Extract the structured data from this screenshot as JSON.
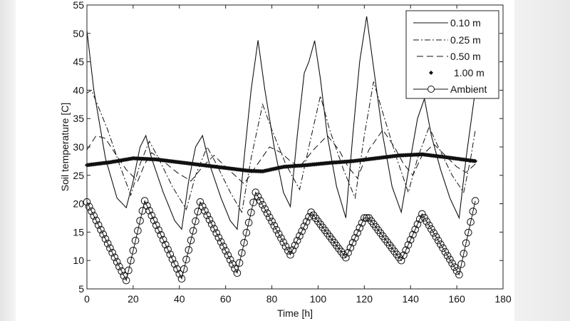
{
  "chart_data": {
    "type": "line",
    "title": "",
    "xlabel": "Time [h]",
    "ylabel": "Soil temperature [C]",
    "xlim": [
      0,
      180
    ],
    "ylim": [
      5,
      55
    ],
    "xticks": [
      0,
      20,
      40,
      60,
      80,
      100,
      120,
      140,
      160,
      180
    ],
    "yticks": [
      5,
      10,
      15,
      20,
      25,
      30,
      35,
      40,
      45,
      50,
      55
    ],
    "grid": false,
    "legend_position": "upper right",
    "series": [
      {
        "name": "0.10 m",
        "style": "solid",
        "points": [
          [
            0,
            50.5
          ],
          [
            3,
            40
          ],
          [
            8,
            28
          ],
          [
            13,
            21
          ],
          [
            17,
            19.3
          ],
          [
            20,
            24
          ],
          [
            23,
            30
          ],
          [
            25.5,
            32
          ],
          [
            28,
            28
          ],
          [
            33,
            22
          ],
          [
            38,
            17
          ],
          [
            41,
            15.5
          ],
          [
            44,
            24
          ],
          [
            47,
            30
          ],
          [
            50,
            32
          ],
          [
            53,
            27
          ],
          [
            58,
            21
          ],
          [
            62,
            17
          ],
          [
            65,
            15.5
          ],
          [
            68,
            28
          ],
          [
            71,
            40
          ],
          [
            74,
            48.8
          ],
          [
            77,
            40
          ],
          [
            81,
            30
          ],
          [
            85,
            22
          ],
          [
            88,
            19.5
          ],
          [
            91,
            32
          ],
          [
            94,
            43
          ],
          [
            96,
            45
          ],
          [
            98.5,
            48.7
          ],
          [
            101,
            42
          ],
          [
            104,
            32
          ],
          [
            108,
            23
          ],
          [
            112,
            17.5
          ],
          [
            115,
            32
          ],
          [
            118,
            45
          ],
          [
            121,
            53
          ],
          [
            124,
            44
          ],
          [
            128,
            32
          ],
          [
            132,
            23
          ],
          [
            136,
            18.5
          ],
          [
            140,
            28
          ],
          [
            143,
            35
          ],
          [
            146,
            38.5
          ],
          [
            149,
            32
          ],
          [
            153,
            26
          ],
          [
            157,
            21
          ],
          [
            161,
            17.5
          ],
          [
            164,
            28
          ],
          [
            168,
            40
          ]
        ]
      },
      {
        "name": "0.25 m",
        "style": "dash-dot",
        "points": [
          [
            0,
            39.5
          ],
          [
            2,
            40
          ],
          [
            5,
            37
          ],
          [
            9,
            33
          ],
          [
            14,
            27
          ],
          [
            19,
            21.5
          ],
          [
            23,
            27
          ],
          [
            27,
            31
          ],
          [
            31,
            28
          ],
          [
            37,
            23
          ],
          [
            43,
            19
          ],
          [
            47,
            25
          ],
          [
            52,
            30
          ],
          [
            56,
            27
          ],
          [
            62,
            22
          ],
          [
            67,
            18.5
          ],
          [
            71,
            28
          ],
          [
            76,
            37.5
          ],
          [
            80,
            33
          ],
          [
            86,
            27
          ],
          [
            92,
            22.5
          ],
          [
            96,
            30
          ],
          [
            101,
            39
          ],
          [
            105,
            33
          ],
          [
            111,
            26
          ],
          [
            116,
            21
          ],
          [
            120,
            32
          ],
          [
            124,
            41.5
          ],
          [
            128,
            36
          ],
          [
            134,
            28
          ],
          [
            139,
            22
          ],
          [
            143,
            28
          ],
          [
            148,
            33.5
          ],
          [
            152,
            30
          ],
          [
            158,
            25
          ],
          [
            163,
            22
          ],
          [
            166,
            28
          ],
          [
            168,
            33
          ]
        ]
      },
      {
        "name": "0.50 m",
        "style": "dashed",
        "points": [
          [
            0,
            29.5
          ],
          [
            4,
            32
          ],
          [
            8,
            31.5
          ],
          [
            12,
            29
          ],
          [
            17,
            26
          ],
          [
            22,
            24
          ],
          [
            25,
            27
          ],
          [
            28,
            29
          ],
          [
            33,
            27.5
          ],
          [
            39,
            25.5
          ],
          [
            45,
            24
          ],
          [
            50,
            26.5
          ],
          [
            55,
            28.5
          ],
          [
            60,
            26.5
          ],
          [
            64,
            25
          ],
          [
            68,
            23.5
          ],
          [
            73,
            26.5
          ],
          [
            79,
            30
          ],
          [
            84,
            29
          ],
          [
            88,
            27.5
          ],
          [
            92,
            26.5
          ],
          [
            98,
            29.5
          ],
          [
            104,
            32
          ],
          [
            109,
            29.5
          ],
          [
            113,
            26.5
          ],
          [
            117,
            24.5
          ],
          [
            122,
            29.5
          ],
          [
            128,
            33
          ],
          [
            133,
            30
          ],
          [
            137,
            27
          ],
          [
            141,
            25
          ],
          [
            145,
            28.5
          ],
          [
            150,
            30.5
          ],
          [
            155,
            28.5
          ],
          [
            160,
            26.5
          ],
          [
            164,
            25.5
          ],
          [
            168,
            27
          ]
        ]
      },
      {
        "name": "1.00 m",
        "style": "markers-dot",
        "points": [
          [
            0,
            26.8
          ],
          [
            10,
            27.3
          ],
          [
            20,
            28
          ],
          [
            30,
            27.8
          ],
          [
            40,
            27.3
          ],
          [
            50,
            26.8
          ],
          [
            60,
            26.3
          ],
          [
            70,
            25.8
          ],
          [
            76,
            25.7
          ],
          [
            85,
            26.5
          ],
          [
            95,
            26.8
          ],
          [
            105,
            27.2
          ],
          [
            115,
            27.5
          ],
          [
            125,
            28
          ],
          [
            135,
            28.5
          ],
          [
            145,
            28.7
          ],
          [
            155,
            28.2
          ],
          [
            168,
            27.5
          ]
        ]
      },
      {
        "name": "Ambient",
        "style": "solid-circles",
        "points": [
          [
            0,
            20.3
          ],
          [
            17,
            6.5
          ],
          [
            25,
            20.5
          ],
          [
            41,
            6.8
          ],
          [
            49,
            20.3
          ],
          [
            65,
            7.8
          ],
          [
            73,
            22
          ],
          [
            88,
            11
          ],
          [
            97,
            18.5
          ],
          [
            112,
            10.5
          ],
          [
            120,
            17.5
          ],
          [
            122,
            17.5
          ],
          [
            136,
            10
          ],
          [
            145,
            18.2
          ],
          [
            161,
            7.5
          ],
          [
            168,
            20.5
          ]
        ]
      }
    ]
  },
  "legend": {
    "items": [
      {
        "label": "0.10 m"
      },
      {
        "label": "0.25 m"
      },
      {
        "label": "0.50 m"
      },
      {
        "label": "1.00 m"
      },
      {
        "label": "Ambient"
      }
    ]
  },
  "axes": {
    "xlabel": "Time [h]",
    "ylabel": "Soil temperature [C]"
  }
}
